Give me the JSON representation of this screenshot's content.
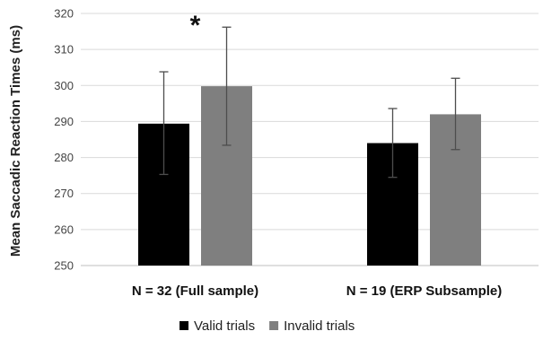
{
  "chart_data": {
    "type": "bar",
    "title": "",
    "xlabel": "",
    "ylabel": "Mean Saccadic Reaction Times (ms)",
    "ylim": [
      250,
      320
    ],
    "yticks": [
      "250",
      "260",
      "270",
      "280",
      "290",
      "300",
      "310",
      "320"
    ],
    "grid": true,
    "legend_position": "bottom",
    "categories": [
      "N = 32 (Full sample)",
      "N = 19 (ERP Subsample)"
    ],
    "series": [
      {
        "name": "Valid trials",
        "color": "#000000",
        "values": [
          289.4,
          284.0
        ],
        "error_low": [
          275.3,
          274.5
        ],
        "error_high": [
          303.8,
          293.6
        ]
      },
      {
        "name": "Invalid trials",
        "color": "#7f7f7f",
        "values": [
          299.8,
          292.0
        ],
        "error_low": [
          283.4,
          282.2
        ],
        "error_high": [
          316.2,
          302.0
        ]
      }
    ],
    "annotations": [
      {
        "text": "*",
        "category": 0
      }
    ]
  }
}
